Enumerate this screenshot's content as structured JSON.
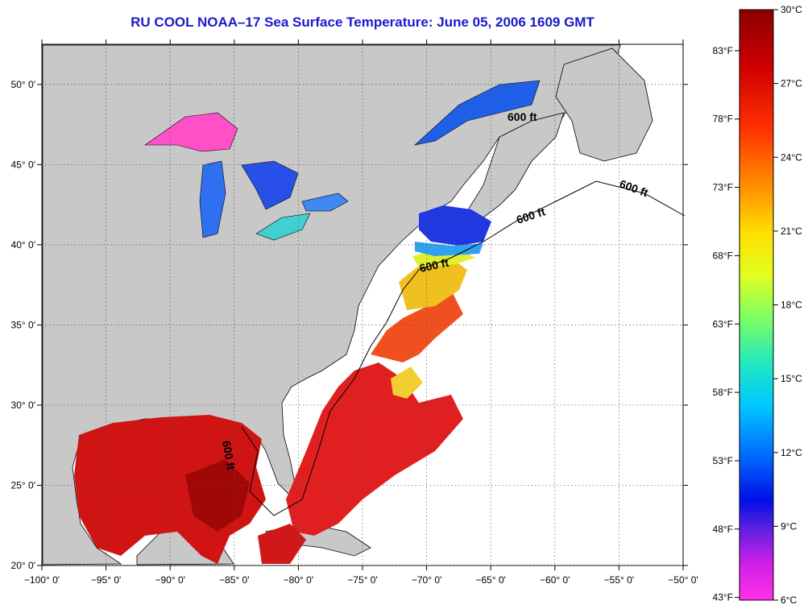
{
  "title": "RU COOL  NOAA–17  Sea Surface Temperature:  June 05, 2006 1609 GMT",
  "map": {
    "lon_range": [
      -100,
      -50
    ],
    "lat_range": [
      20,
      52.5
    ],
    "lon_ticks": [
      {
        "value": -100,
        "label": "−100° 0'"
      },
      {
        "value": -95,
        "label": "−95° 0'"
      },
      {
        "value": -90,
        "label": "−90° 0'"
      },
      {
        "value": -85,
        "label": "−85° 0'"
      },
      {
        "value": -80,
        "label": "−80° 0'"
      },
      {
        "value": -75,
        "label": "−75° 0'"
      },
      {
        "value": -70,
        "label": "−70° 0'"
      },
      {
        "value": -65,
        "label": "−65° 0'"
      },
      {
        "value": -60,
        "label": "−60° 0'"
      },
      {
        "value": -55,
        "label": "−55° 0'"
      },
      {
        "value": -50,
        "label": "−50° 0'"
      }
    ],
    "lat_ticks": [
      {
        "value": 20,
        "label": "20° 0'"
      },
      {
        "value": 25,
        "label": "25° 0'"
      },
      {
        "value": 30,
        "label": "30° 0'"
      },
      {
        "value": 35,
        "label": "35° 0'"
      },
      {
        "value": 40,
        "label": "40° 0'"
      },
      {
        "value": 45,
        "label": "45° 0'"
      },
      {
        "value": 50,
        "label": "50° 0'"
      }
    ],
    "depth_label": "600 ft",
    "colors": {
      "land": "#c8c8c8",
      "ocean": "#ffffff",
      "warm_water": "#e01010",
      "gulf_water": "#cc1010",
      "mid_water": "#f08020",
      "cool_water": "#f0e020",
      "cold_water": "#2030e0",
      "lakes": "#3060e8",
      "grid": "#444444"
    }
  },
  "colorbar": {
    "fahrenheit_labels": [
      "83°F",
      "78°F",
      "73°F",
      "68°F",
      "63°F",
      "58°F",
      "53°F",
      "48°F",
      "43°F"
    ],
    "celsius_labels": [
      "30°C",
      "27°C",
      "24°C",
      "21°C",
      "18°C",
      "15°C",
      "12°C",
      "9°C",
      "6°C"
    ],
    "stops": [
      "#8b0000",
      "#e00000",
      "#ff2000",
      "#ff8000",
      "#ffd000",
      "#ffff00",
      "#b0f040",
      "#40e0a0",
      "#00e0e0",
      "#00a0ff",
      "#0040ff",
      "#0000e0",
      "#8020e0",
      "#ff20e0"
    ]
  }
}
